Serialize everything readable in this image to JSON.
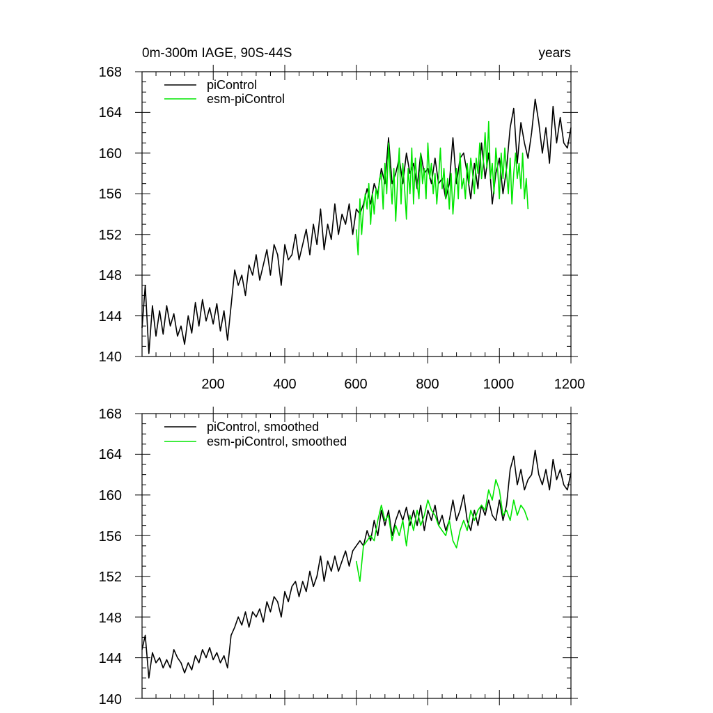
{
  "chart_data": [
    {
      "type": "line",
      "title": "0m-300m IAGE, 90S-44S",
      "units": "years",
      "xlim": [
        1,
        1200
      ],
      "ylim": [
        140,
        168
      ],
      "xticks": [
        200,
        400,
        600,
        800,
        1000,
        1200
      ],
      "yticks": [
        140,
        144,
        148,
        152,
        156,
        160,
        164,
        168
      ],
      "xtick_labels": [
        "200",
        "400",
        "600",
        "800",
        "1000",
        "1200"
      ],
      "ytick_labels": [
        "140",
        "144",
        "148",
        "152",
        "156",
        "160",
        "164",
        "168"
      ],
      "legend_position": "top-left",
      "series": [
        {
          "name": "piControl",
          "color": "#000000",
          "x": [
            1,
            10,
            20,
            30,
            40,
            50,
            60,
            70,
            80,
            90,
            100,
            110,
            120,
            130,
            140,
            150,
            160,
            170,
            180,
            190,
            200,
            210,
            220,
            230,
            240,
            250,
            260,
            270,
            280,
            290,
            300,
            310,
            320,
            330,
            340,
            350,
            360,
            370,
            380,
            390,
            400,
            410,
            420,
            430,
            440,
            450,
            460,
            470,
            480,
            490,
            500,
            510,
            520,
            530,
            540,
            550,
            560,
            570,
            580,
            590,
            600,
            610,
            620,
            630,
            640,
            650,
            660,
            670,
            680,
            690,
            700,
            710,
            720,
            730,
            740,
            750,
            760,
            770,
            780,
            790,
            800,
            810,
            820,
            830,
            840,
            850,
            860,
            870,
            880,
            890,
            900,
            910,
            920,
            930,
            940,
            950,
            960,
            970,
            980,
            990,
            1000,
            1010,
            1020,
            1030,
            1040,
            1050,
            1060,
            1070,
            1080,
            1090,
            1100,
            1110,
            1120,
            1130,
            1140,
            1150,
            1160,
            1170,
            1180,
            1190,
            1200
          ],
          "y": [
            142.8,
            147.0,
            140.3,
            145.0,
            142.0,
            144.5,
            142.2,
            145.0,
            143.0,
            144.2,
            142.0,
            143.0,
            141.2,
            144.0,
            142.3,
            145.3,
            143.0,
            145.6,
            143.5,
            144.8,
            143.2,
            145.2,
            142.5,
            144.5,
            141.6,
            145.0,
            148.5,
            147.0,
            148.0,
            146.0,
            149.0,
            148.0,
            150.0,
            147.5,
            149.0,
            150.5,
            148.0,
            151.0,
            150.0,
            147.0,
            151.0,
            149.5,
            150.0,
            152.0,
            149.5,
            151.0,
            152.5,
            150.0,
            153.0,
            151.0,
            154.5,
            150.5,
            153.0,
            151.5,
            155.0,
            152.0,
            154.0,
            153.0,
            155.0,
            152.0,
            154.5,
            154.0,
            155.0,
            156.5,
            155.0,
            157.0,
            156.0,
            158.5,
            157.0,
            161.5,
            157.0,
            158.0,
            159.5,
            157.0,
            160.0,
            158.0,
            159.0,
            156.5,
            160.0,
            158.0,
            158.5,
            157.0,
            159.5,
            157.0,
            157.5,
            155.5,
            157.0,
            161.5,
            157.0,
            159.5,
            160.0,
            158.0,
            155.5,
            159.0,
            156.5,
            161.0,
            157.5,
            160.0,
            155.0,
            158.0,
            159.5,
            156.0,
            158.5,
            162.5,
            164.4,
            159.0,
            163.0,
            161.0,
            159.5,
            162.0,
            165.3,
            163.0,
            160.0,
            162.5,
            159.0,
            164.6,
            161.0,
            163.5,
            161.0,
            160.5,
            162.5
          ]
        },
        {
          "name": "esm-piControl",
          "color": "#00e600",
          "x": [
            600,
            605,
            610,
            615,
            620,
            625,
            630,
            635,
            640,
            645,
            650,
            655,
            660,
            665,
            670,
            675,
            680,
            685,
            690,
            695,
            700,
            705,
            710,
            715,
            720,
            725,
            730,
            735,
            740,
            745,
            750,
            755,
            760,
            765,
            770,
            775,
            780,
            785,
            790,
            795,
            800,
            805,
            810,
            815,
            820,
            825,
            830,
            835,
            840,
            845,
            850,
            855,
            860,
            865,
            870,
            875,
            880,
            885,
            890,
            895,
            900,
            905,
            910,
            915,
            920,
            925,
            930,
            935,
            940,
            945,
            950,
            955,
            960,
            965,
            970,
            975,
            980,
            985,
            990,
            995,
            1000,
            1005,
            1010,
            1015,
            1020,
            1025,
            1030,
            1035,
            1040,
            1045,
            1050,
            1055,
            1060,
            1065,
            1070,
            1075,
            1080
          ],
          "y": [
            152.5,
            150.0,
            155.5,
            152.0,
            154.5,
            156.0,
            154.5,
            157.0,
            153.0,
            156.0,
            154.0,
            156.5,
            155.5,
            157.5,
            158.0,
            154.5,
            159.0,
            156.0,
            161.0,
            157.5,
            155.0,
            158.5,
            153.3,
            157.0,
            160.5,
            155.0,
            159.0,
            156.5,
            153.5,
            158.5,
            156.0,
            160.5,
            155.0,
            159.5,
            157.0,
            155.5,
            160.0,
            157.0,
            158.5,
            155.5,
            161.0,
            157.5,
            159.0,
            156.0,
            158.0,
            155.0,
            157.5,
            160.5,
            156.5,
            158.5,
            155.5,
            157.5,
            154.5,
            158.0,
            154.0,
            156.5,
            158.5,
            155.5,
            160.0,
            156.5,
            157.5,
            155.5,
            159.0,
            157.0,
            159.5,
            158.0,
            156.0,
            159.5,
            158.0,
            161.0,
            157.5,
            159.0,
            162.0,
            158.5,
            163.1,
            157.5,
            159.0,
            156.0,
            160.5,
            158.5,
            155.5,
            160.0,
            157.5,
            160.5,
            158.0,
            156.0,
            159.5,
            155.0,
            158.0,
            160.0,
            157.5,
            159.0,
            156.5,
            160.0,
            155.5,
            157.5,
            154.5
          ]
        }
      ]
    },
    {
      "type": "line",
      "title": "",
      "xlim": [
        1,
        1200
      ],
      "ylim": [
        140,
        168
      ],
      "yticks": [
        140,
        144,
        148,
        152,
        156,
        160,
        164,
        168
      ],
      "ytick_labels": [
        "140",
        "144",
        "148",
        "152",
        "156",
        "160",
        "164",
        "168"
      ],
      "legend_position": "top-left",
      "series": [
        {
          "name": "piControl, smoothed",
          "color": "#000000",
          "x": [
            1,
            10,
            20,
            30,
            40,
            50,
            60,
            70,
            80,
            90,
            100,
            110,
            120,
            130,
            140,
            150,
            160,
            170,
            180,
            190,
            200,
            210,
            220,
            230,
            240,
            250,
            260,
            270,
            280,
            290,
            300,
            310,
            320,
            330,
            340,
            350,
            360,
            370,
            380,
            390,
            400,
            410,
            420,
            430,
            440,
            450,
            460,
            470,
            480,
            490,
            500,
            510,
            520,
            530,
            540,
            550,
            560,
            570,
            580,
            590,
            600,
            610,
            620,
            630,
            640,
            650,
            660,
            670,
            680,
            690,
            700,
            710,
            720,
            730,
            740,
            750,
            760,
            770,
            780,
            790,
            800,
            810,
            820,
            830,
            840,
            850,
            860,
            870,
            880,
            890,
            900,
            910,
            920,
            930,
            940,
            950,
            960,
            970,
            980,
            990,
            1000,
            1010,
            1020,
            1030,
            1040,
            1050,
            1060,
            1070,
            1080,
            1090,
            1100,
            1110,
            1120,
            1130,
            1140,
            1150,
            1160,
            1170,
            1180,
            1190,
            1200
          ],
          "y": [
            144.8,
            146.2,
            142.0,
            144.5,
            143.5,
            144.0,
            143.0,
            143.8,
            143.0,
            144.8,
            144.0,
            143.5,
            142.5,
            143.5,
            142.8,
            144.2,
            143.5,
            144.8,
            144.0,
            145.0,
            143.8,
            144.5,
            143.5,
            144.2,
            143.0,
            146.2,
            147.0,
            148.0,
            147.2,
            148.5,
            147.0,
            148.5,
            148.0,
            148.8,
            147.5,
            149.5,
            148.5,
            150.0,
            149.5,
            148.0,
            150.5,
            149.5,
            151.0,
            151.5,
            150.0,
            151.5,
            150.5,
            152.5,
            151.0,
            152.0,
            154.0,
            151.5,
            153.5,
            152.5,
            154.0,
            152.5,
            153.5,
            154.5,
            153.0,
            154.5,
            155.0,
            155.5,
            155.0,
            156.5,
            155.5,
            157.5,
            156.0,
            158.5,
            157.0,
            158.5,
            156.0,
            157.5,
            158.5,
            157.5,
            158.8,
            157.0,
            158.5,
            157.0,
            159.0,
            156.5,
            158.5,
            157.5,
            159.0,
            157.0,
            158.0,
            156.5,
            157.5,
            159.5,
            157.5,
            158.5,
            160.0,
            157.5,
            156.5,
            158.5,
            157.0,
            159.0,
            158.0,
            159.5,
            158.0,
            157.5,
            159.5,
            157.5,
            159.0,
            162.5,
            163.8,
            161.0,
            162.5,
            160.5,
            161.5,
            162.0,
            164.4,
            162.0,
            161.0,
            162.5,
            160.5,
            163.5,
            161.5,
            162.5,
            161.0,
            160.5,
            162.2
          ]
        },
        {
          "name": "esm-piControl, smoothed",
          "color": "#00e600",
          "x": [
            600,
            610,
            620,
            630,
            640,
            650,
            660,
            670,
            680,
            690,
            700,
            710,
            720,
            730,
            740,
            750,
            760,
            770,
            780,
            790,
            800,
            810,
            820,
            830,
            840,
            850,
            860,
            870,
            880,
            890,
            900,
            910,
            920,
            930,
            940,
            950,
            960,
            970,
            980,
            990,
            1000,
            1010,
            1020,
            1030,
            1040,
            1050,
            1060,
            1070,
            1080
          ],
          "y": [
            153.5,
            151.5,
            155.0,
            155.5,
            156.0,
            155.5,
            157.5,
            159.0,
            157.5,
            158.0,
            155.5,
            157.0,
            156.0,
            157.5,
            155.0,
            158.0,
            156.5,
            158.5,
            157.0,
            158.0,
            159.5,
            158.5,
            158.0,
            157.0,
            156.5,
            156.0,
            157.5,
            155.5,
            154.8,
            156.5,
            157.5,
            156.5,
            158.5,
            157.5,
            158.5,
            159.0,
            158.5,
            160.5,
            159.5,
            161.5,
            160.5,
            158.0,
            158.5,
            157.5,
            159.5,
            158.0,
            159.0,
            158.5,
            157.5
          ]
        }
      ]
    }
  ]
}
